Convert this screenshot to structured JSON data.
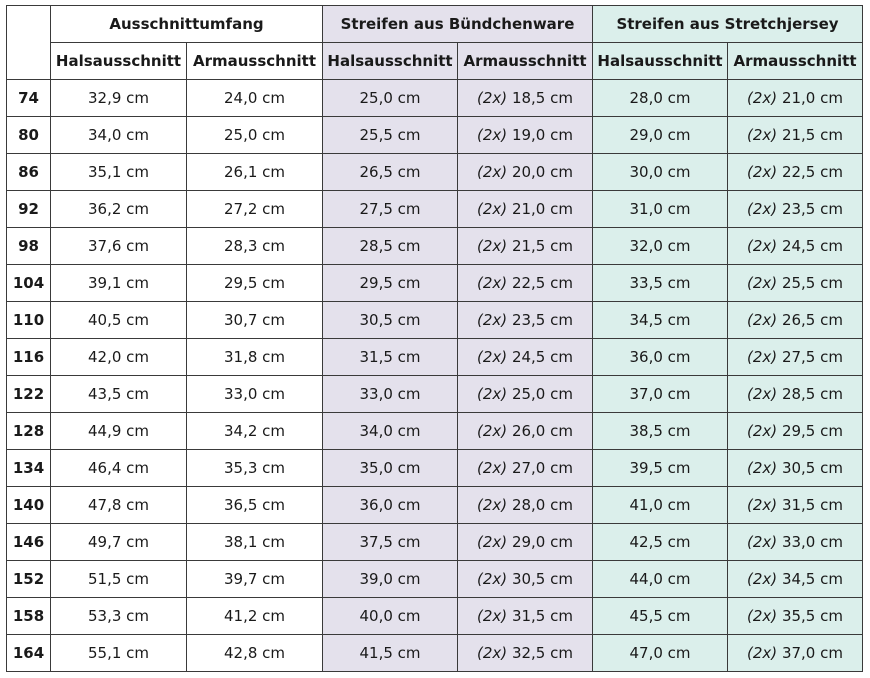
{
  "header": {
    "groups": [
      {
        "label": "Ausschnittumfang",
        "tint": "none"
      },
      {
        "label": "Streifen aus Bündchenware",
        "tint": "#e4e1ec"
      },
      {
        "label": "Streifen aus Stretchjersey",
        "tint": "#dbefeb"
      }
    ],
    "columns": [
      "Halsausschnitt",
      "Armausschnitt",
      "Halsausschnitt",
      "Armausschnitt",
      "Halsausschnitt",
      "Armausschnitt"
    ]
  },
  "multiplier": "(2x)",
  "rows": [
    {
      "size": "74",
      "values": [
        "32,9 cm",
        "24,0 cm",
        "25,0 cm",
        "18,5 cm",
        "28,0 cm",
        "21,0 cm"
      ]
    },
    {
      "size": "80",
      "values": [
        "34,0 cm",
        "25,0 cm",
        "25,5 cm",
        "19,0 cm",
        "29,0 cm",
        "21,5 cm"
      ]
    },
    {
      "size": "86",
      "values": [
        "35,1 cm",
        "26,1 cm",
        "26,5 cm",
        "20,0 cm",
        "30,0 cm",
        "22,5 cm"
      ]
    },
    {
      "size": "92",
      "values": [
        "36,2 cm",
        "27,2 cm",
        "27,5 cm",
        "21,0 cm",
        "31,0 cm",
        "23,5 cm"
      ]
    },
    {
      "size": "98",
      "values": [
        "37,6 cm",
        "28,3 cm",
        "28,5 cm",
        "21,5 cm",
        "32,0 cm",
        "24,5 cm"
      ]
    },
    {
      "size": "104",
      "values": [
        "39,1 cm",
        "29,5 cm",
        "29,5 cm",
        "22,5 cm",
        "33,5 cm",
        "25,5 cm"
      ]
    },
    {
      "size": "110",
      "values": [
        "40,5 cm",
        "30,7 cm",
        "30,5 cm",
        "23,5 cm",
        "34,5 cm",
        "26,5 cm"
      ]
    },
    {
      "size": "116",
      "values": [
        "42,0 cm",
        "31,8 cm",
        "31,5 cm",
        "24,5 cm",
        "36,0 cm",
        "27,5 cm"
      ]
    },
    {
      "size": "122",
      "values": [
        "43,5 cm",
        "33,0 cm",
        "33,0 cm",
        "25,0 cm",
        "37,0 cm",
        "28,5 cm"
      ]
    },
    {
      "size": "128",
      "values": [
        "44,9 cm",
        "34,2 cm",
        "34,0 cm",
        "26,0 cm",
        "38,5 cm",
        "29,5 cm"
      ]
    },
    {
      "size": "134",
      "values": [
        "46,4 cm",
        "35,3 cm",
        "35,0 cm",
        "27,0 cm",
        "39,5 cm",
        "30,5 cm"
      ]
    },
    {
      "size": "140",
      "values": [
        "47,8 cm",
        "36,5 cm",
        "36,0 cm",
        "28,0 cm",
        "41,0 cm",
        "31,5 cm"
      ]
    },
    {
      "size": "146",
      "values": [
        "49,7 cm",
        "38,1 cm",
        "37,5 cm",
        "29,0 cm",
        "42,5 cm",
        "33,0 cm"
      ]
    },
    {
      "size": "152",
      "values": [
        "51,5 cm",
        "39,7 cm",
        "39,0 cm",
        "30,5 cm",
        "44,0 cm",
        "34,5 cm"
      ]
    },
    {
      "size": "158",
      "values": [
        "53,3 cm",
        "41,2 cm",
        "40,0 cm",
        "31,5 cm",
        "45,5 cm",
        "35,5 cm"
      ]
    },
    {
      "size": "164",
      "values": [
        "55,1 cm",
        "42,8 cm",
        "41,5 cm",
        "32,5 cm",
        "47,0 cm",
        "37,0 cm"
      ]
    }
  ]
}
